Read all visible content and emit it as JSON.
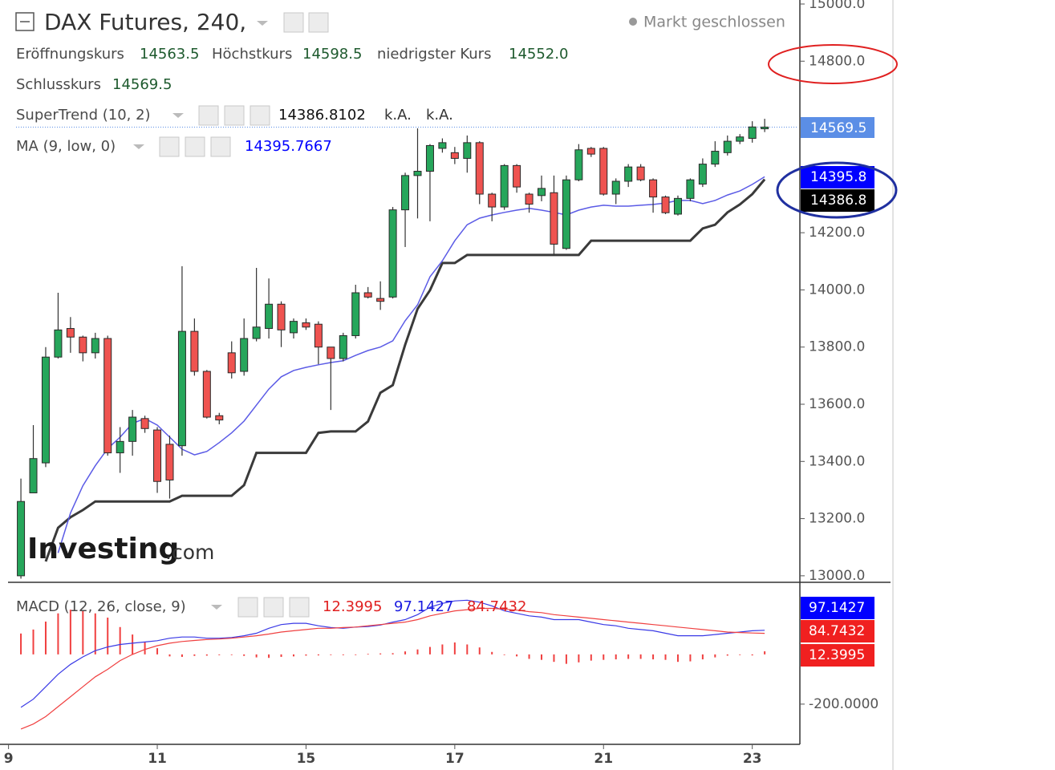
{
  "chart_data": [
    {
      "type": "candlestick",
      "title": "DAX Futures, 240,",
      "status": "Markt geschlossen",
      "ohlc_labels": {
        "open": "Eröffnungskurs",
        "high": "Höchstkurs",
        "low": "niedrigster Kurs",
        "close": "Schlusskurs"
      },
      "legend_values": {
        "open": "14563.5",
        "high": "14598.5",
        "low": "14552.0",
        "close": "14569.5"
      },
      "up_color": "#26a65b",
      "down_color": "#ef5350",
      "open": [
        13000,
        13290,
        13395,
        13765,
        13865,
        13835,
        13780,
        13830,
        13430,
        13470,
        13550,
        13510,
        13460,
        13455,
        13855,
        13715,
        13560,
        13780,
        13715,
        13830,
        13865,
        13950,
        13850,
        13885,
        13880,
        13800,
        13760,
        13840,
        13990,
        13970,
        13975,
        14280,
        14400,
        14415,
        14495,
        14480,
        14460,
        14515,
        14335,
        14290,
        14435,
        14335,
        14330,
        14340,
        14145,
        14385,
        14495,
        14495,
        14335,
        14380,
        14430,
        14385,
        14325,
        14265,
        14320,
        14370,
        14440,
        14480,
        14520,
        14530,
        14563.5
      ],
      "high": [
        13340,
        13527,
        13800,
        13990,
        13905,
        13840,
        13850,
        13840,
        13520,
        13580,
        13560,
        13520,
        13490,
        14083,
        13900,
        13720,
        13570,
        13820,
        13900,
        14077,
        14040,
        13960,
        13900,
        13900,
        13890,
        13800,
        13850,
        14018,
        14010,
        14030,
        14290,
        14410,
        14565,
        14510,
        14530,
        14500,
        14540,
        14520,
        14340,
        14440,
        14440,
        14340,
        14400,
        14400,
        14400,
        14510,
        14500,
        14500,
        14390,
        14440,
        14440,
        14390,
        14330,
        14330,
        14390,
        14460,
        14520,
        14540,
        14545,
        14590,
        14598.5
      ],
      "low": [
        12990,
        13290,
        13380,
        13760,
        13780,
        13750,
        13760,
        13420,
        13360,
        13420,
        13500,
        13290,
        13270,
        13420,
        13700,
        13550,
        13530,
        13690,
        13700,
        13820,
        13830,
        13800,
        13830,
        13860,
        13740,
        13580,
        13750,
        13830,
        13970,
        13930,
        13970,
        14150,
        14250,
        14240,
        14480,
        14440,
        14410,
        14300,
        14240,
        14280,
        14340,
        14270,
        14310,
        14120,
        14140,
        14380,
        14465,
        14330,
        14300,
        14360,
        14380,
        14270,
        14265,
        14260,
        14310,
        14360,
        14430,
        14470,
        14510,
        14515,
        14552
      ],
      "close": [
        13260,
        13410,
        13765,
        13860,
        13835,
        13780,
        13830,
        13430,
        13470,
        13555,
        13515,
        13330,
        13335,
        13855,
        13715,
        13555,
        13545,
        13710,
        13830,
        13870,
        13950,
        13860,
        13890,
        13870,
        13800,
        13760,
        13840,
        13990,
        13975,
        13960,
        14280,
        14400,
        14415,
        14505,
        14515,
        14460,
        14515,
        14335,
        14290,
        14435,
        14360,
        14300,
        14355,
        14160,
        14385,
        14490,
        14475,
        14335,
        14380,
        14430,
        14385,
        14325,
        14270,
        14320,
        14385,
        14440,
        14485,
        14520,
        14535,
        14570,
        14569.5
      ],
      "overlays": [
        {
          "name": "SuperTrend (10, 2)",
          "color": "#3a3a3a",
          "legend_color": "#111111",
          "tag_color": "#000000",
          "extra": [
            "k.A.",
            "k.A."
          ],
          "last_label": "14386.8",
          "values": [
            null,
            null,
            13050,
            13168,
            13205,
            13230,
            13260,
            13260,
            13260,
            13260,
            13260,
            13260,
            13260,
            13280,
            13280,
            13280,
            13280,
            13280,
            13317,
            13430,
            13430,
            13430,
            13430,
            13430,
            13500,
            13505,
            13505,
            13505,
            13540,
            13640,
            13667,
            13808,
            13934,
            13999,
            14094,
            14094,
            14122,
            14122,
            14122,
            14122,
            14122,
            14122,
            14122,
            14122,
            14122,
            14122,
            14172,
            14172,
            14172,
            14172,
            14172,
            14172,
            14172,
            14172,
            14172,
            14215,
            14228,
            14271,
            14299,
            14335,
            14386.8102
          ]
        },
        {
          "name": "MA (9, low, 0)",
          "color": "#5b5be6",
          "legend_color": "#0000ff",
          "tag_color": "#0000ff",
          "last_label": "14395.8",
          "values": [
            null,
            null,
            null,
            13080,
            13220,
            13315,
            13385,
            13445,
            13485,
            13533,
            13550,
            13527,
            13485,
            13443,
            13423,
            13435,
            13466,
            13500,
            13541,
            13597,
            13653,
            13696,
            13718,
            13729,
            13738,
            13746,
            13752,
            13771,
            13788,
            13800,
            13822,
            13892,
            13948,
            14046,
            14102,
            14172,
            14228,
            14251,
            14262,
            14271,
            14279,
            14285,
            14279,
            14271,
            14262,
            14279,
            14290,
            14296,
            14293,
            14293,
            14296,
            14299,
            14304,
            14313,
            14313,
            14302,
            14313,
            14332,
            14346,
            14369,
            14395.7667
          ]
        }
      ],
      "xlim": [
        -1.04,
        62.71
      ],
      "xticks": [
        {
          "value": -1,
          "label": "9"
        },
        {
          "value": 11,
          "label": "11"
        },
        {
          "value": 23,
          "label": "15"
        },
        {
          "value": 35,
          "label": "17"
        },
        {
          "value": 47,
          "label": "21"
        },
        {
          "value": 59,
          "label": "23"
        }
      ],
      "ylim": [
        12980,
        15014
      ],
      "yticks": [
        {
          "value": 13000,
          "label": "13000.0"
        },
        {
          "value": 13200,
          "label": "13200.0"
        },
        {
          "value": 13400,
          "label": "13400.0"
        },
        {
          "value": 13600,
          "label": "13600.0"
        },
        {
          "value": 13800,
          "label": "13800.0"
        },
        {
          "value": 14000,
          "label": "14000.0"
        },
        {
          "value": 14200,
          "label": "14200.0"
        },
        {
          "value": 14800,
          "label": "14800.0"
        },
        {
          "value": 15000,
          "label": "15000.0"
        }
      ],
      "watermark": [
        "Investing",
        ".com"
      ]
    },
    {
      "type": "macd",
      "title": "MACD (12, 26, close, 9)",
      "ylim": [
        -352,
        277
      ],
      "yticks": [
        {
          "value": -200,
          "label": "-200.0000"
        }
      ],
      "series": [
        {
          "kind": "histogram",
          "color": "#f04040",
          "values": [
            84,
            100,
            132,
            165,
            180,
            176,
            165,
            148,
            110,
            80,
            50,
            25,
            -8,
            -10,
            -6,
            -5,
            -3,
            0,
            -6,
            -12,
            -14,
            -10,
            -8,
            -5,
            -4,
            0,
            -3,
            0,
            2,
            4,
            5,
            12,
            20,
            30,
            40,
            48,
            40,
            28,
            10,
            -2,
            -8,
            -18,
            -22,
            -30,
            -38,
            -32,
            -25,
            -22,
            -20,
            -18,
            -18,
            -20,
            -22,
            -30,
            -28,
            -20,
            -12,
            -5,
            0,
            -4,
            12.3995
          ]
        },
        {
          "kind": "line",
          "color": "#3a3ae6",
          "values": [
            -213,
            -180,
            -130,
            -80,
            -40,
            -10,
            15,
            30,
            40,
            45,
            50,
            55,
            65,
            70,
            70,
            65,
            65,
            68,
            75,
            85,
            105,
            120,
            125,
            125,
            115,
            108,
            105,
            110,
            112,
            118,
            130,
            140,
            160,
            190,
            205,
            215,
            218,
            210,
            195,
            175,
            165,
            155,
            150,
            140,
            140,
            140,
            130,
            120,
            115,
            105,
            100,
            95,
            85,
            75,
            75,
            75,
            80,
            85,
            90,
            95,
            97.1427
          ]
        },
        {
          "kind": "line",
          "color": "#f04040",
          "values": [
            -300,
            -280,
            -250,
            -210,
            -170,
            -130,
            -90,
            -60,
            -25,
            0,
            20,
            35,
            45,
            52,
            56,
            60,
            62,
            65,
            70,
            75,
            82,
            90,
            95,
            100,
            105,
            105,
            108,
            110,
            115,
            120,
            125,
            130,
            140,
            155,
            165,
            175,
            180,
            185,
            185,
            182,
            178,
            172,
            168,
            160,
            155,
            150,
            145,
            140,
            135,
            130,
            125,
            120,
            115,
            110,
            105,
            100,
            95,
            90,
            88,
            86,
            84.7432
          ]
        }
      ]
    }
  ]
}
